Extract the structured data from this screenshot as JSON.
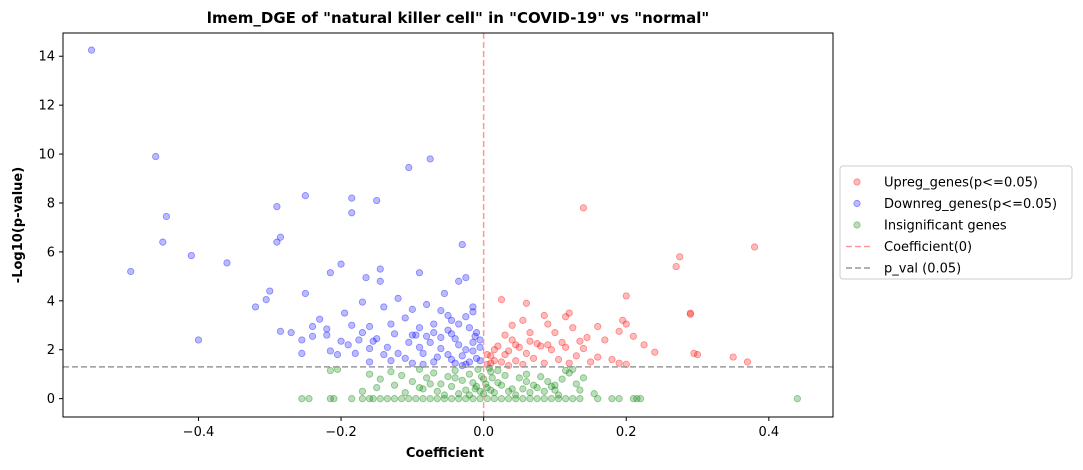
{
  "chart_data": {
    "type": "scatter",
    "title": "lmem_DGE of \"natural killer cell\" in \"COVID-19\" vs \"normal\"",
    "xlabel": "Coefficient",
    "ylabel": "-Log10(p-value)",
    "xlim": [
      -0.59,
      0.49
    ],
    "ylim": [
      -0.75,
      14.95
    ],
    "xticks": [
      -0.4,
      -0.2,
      0.0,
      0.2,
      0.4
    ],
    "xtick_labels": [
      "−0.4",
      "−0.2",
      "0.0",
      "0.2",
      "0.4"
    ],
    "yticks": [
      0,
      2,
      4,
      6,
      8,
      10,
      12,
      14
    ],
    "ytick_labels": [
      "0",
      "2",
      "4",
      "6",
      "8",
      "10",
      "12",
      "14"
    ],
    "grid": false,
    "legend_position": "outside-right",
    "reference_lines": [
      {
        "name": "Coefficient(0)",
        "orientation": "vertical",
        "value": 0.0,
        "color": "#ff9999",
        "style": "dashed"
      },
      {
        "name": "p_val (0.05)",
        "orientation": "horizontal",
        "value": 1.301,
        "color": "#999999",
        "style": "dashed"
      }
    ],
    "series": [
      {
        "name": "Upreg_genes(p<=0.05)",
        "color": "#ff0000",
        "points": [
          [
            0.14,
            7.8
          ],
          [
            0.38,
            6.2
          ],
          [
            0.275,
            5.8
          ],
          [
            0.27,
            5.4
          ],
          [
            0.2,
            4.2
          ],
          [
            0.025,
            4.05
          ],
          [
            0.06,
            3.9
          ],
          [
            0.29,
            3.5
          ],
          [
            0.29,
            3.45
          ],
          [
            0.12,
            3.5
          ],
          [
            0.085,
            3.4
          ],
          [
            0.115,
            3.35
          ],
          [
            0.195,
            3.2
          ],
          [
            0.2,
            3.05
          ],
          [
            0.055,
            3.2
          ],
          [
            0.09,
            3.05
          ],
          [
            0.04,
            3.0
          ],
          [
            0.16,
            2.95
          ],
          [
            0.125,
            2.9
          ],
          [
            0.19,
            2.75
          ],
          [
            0.1,
            2.7
          ],
          [
            0.065,
            2.7
          ],
          [
            0.03,
            2.6
          ],
          [
            0.145,
            2.5
          ],
          [
            0.21,
            2.55
          ],
          [
            0.17,
            2.4
          ],
          [
            0.135,
            2.35
          ],
          [
            0.11,
            2.3
          ],
          [
            0.075,
            2.25
          ],
          [
            0.045,
            2.2
          ],
          [
            0.02,
            2.15
          ],
          [
            0.225,
            2.2
          ],
          [
            0.08,
            2.15
          ],
          [
            0.05,
            2.1
          ],
          [
            0.035,
            1.95
          ],
          [
            0.015,
            2.0
          ],
          [
            0.095,
            2.0
          ],
          [
            0.06,
            1.85
          ],
          [
            0.03,
            1.8
          ],
          [
            0.01,
            1.75
          ],
          [
            0.16,
            1.7
          ],
          [
            0.18,
            1.6
          ],
          [
            0.13,
            1.75
          ],
          [
            0.105,
            1.6
          ],
          [
            0.07,
            1.65
          ],
          [
            0.045,
            1.55
          ],
          [
            0.025,
            1.5
          ],
          [
            0.01,
            1.45
          ],
          [
            0.19,
            1.45
          ],
          [
            0.24,
            1.9
          ],
          [
            0.3,
            1.8
          ],
          [
            0.295,
            1.85
          ],
          [
            0.35,
            1.7
          ],
          [
            0.37,
            1.5
          ],
          [
            0.2,
            1.4
          ],
          [
            0.15,
            1.5
          ],
          [
            0.12,
            1.45
          ],
          [
            0.085,
            1.45
          ],
          [
            0.055,
            1.4
          ],
          [
            0.005,
            1.4
          ],
          [
            0.015,
            1.55
          ],
          [
            0.005,
            1.8
          ],
          [
            0.04,
            2.4
          ],
          [
            0.065,
            2.35
          ],
          [
            0.09,
            2.2
          ],
          [
            0.115,
            2.1
          ],
          [
            0.14,
            2.05
          ],
          [
            0.035,
            1.35
          ]
        ]
      },
      {
        "name": "Downreg_genes(p<=0.05)",
        "color": "#0000ff",
        "points": [
          [
            -0.55,
            14.25
          ],
          [
            -0.46,
            9.9
          ],
          [
            -0.075,
            9.8
          ],
          [
            -0.105,
            9.45
          ],
          [
            -0.25,
            8.3
          ],
          [
            -0.185,
            8.2
          ],
          [
            -0.15,
            8.1
          ],
          [
            -0.29,
            7.85
          ],
          [
            -0.185,
            7.6
          ],
          [
            -0.445,
            7.45
          ],
          [
            -0.285,
            6.6
          ],
          [
            -0.29,
            6.4
          ],
          [
            -0.45,
            6.4
          ],
          [
            -0.03,
            6.3
          ],
          [
            -0.41,
            5.85
          ],
          [
            -0.495,
            5.2
          ],
          [
            -0.36,
            5.55
          ],
          [
            -0.2,
            5.5
          ],
          [
            -0.215,
            5.15
          ],
          [
            -0.145,
            5.3
          ],
          [
            -0.09,
            5.15
          ],
          [
            -0.025,
            4.95
          ],
          [
            -0.035,
            4.8
          ],
          [
            -0.165,
            4.95
          ],
          [
            -0.145,
            4.8
          ],
          [
            -0.3,
            4.4
          ],
          [
            -0.25,
            4.3
          ],
          [
            -0.305,
            4.05
          ],
          [
            -0.32,
            3.75
          ],
          [
            -0.17,
            3.95
          ],
          [
            -0.055,
            4.3
          ],
          [
            -0.12,
            4.1
          ],
          [
            -0.08,
            3.85
          ],
          [
            -0.14,
            3.75
          ],
          [
            -0.015,
            3.75
          ],
          [
            -0.195,
            3.5
          ],
          [
            -0.05,
            3.4
          ],
          [
            -0.11,
            3.3
          ],
          [
            -0.045,
            3.2
          ],
          [
            -0.23,
            3.25
          ],
          [
            -0.24,
            2.95
          ],
          [
            -0.22,
            2.85
          ],
          [
            -0.185,
            3.0
          ],
          [
            -0.16,
            2.95
          ],
          [
            -0.13,
            3.05
          ],
          [
            -0.09,
            2.9
          ],
          [
            -0.07,
            3.05
          ],
          [
            -0.035,
            3.05
          ],
          [
            -0.02,
            2.9
          ],
          [
            -0.01,
            2.7
          ],
          [
            -0.05,
            2.8
          ],
          [
            -0.095,
            2.6
          ],
          [
            -0.125,
            2.65
          ],
          [
            -0.17,
            2.7
          ],
          [
            -0.22,
            2.6
          ],
          [
            -0.24,
            2.55
          ],
          [
            -0.27,
            2.7
          ],
          [
            -0.285,
            2.75
          ],
          [
            -0.4,
            2.4
          ],
          [
            -0.255,
            2.4
          ],
          [
            -0.2,
            2.35
          ],
          [
            -0.155,
            2.35
          ],
          [
            -0.105,
            2.3
          ],
          [
            -0.075,
            2.3
          ],
          [
            -0.04,
            2.45
          ],
          [
            -0.015,
            2.3
          ],
          [
            -0.005,
            2.1
          ],
          [
            -0.025,
            2.0
          ],
          [
            -0.06,
            2.05
          ],
          [
            -0.09,
            2.1
          ],
          [
            -0.135,
            2.1
          ],
          [
            -0.16,
            2.05
          ],
          [
            -0.19,
            2.2
          ],
          [
            -0.215,
            1.95
          ],
          [
            -0.255,
            1.85
          ],
          [
            -0.205,
            1.8
          ],
          [
            -0.18,
            1.85
          ],
          [
            -0.14,
            1.8
          ],
          [
            -0.12,
            1.85
          ],
          [
            -0.085,
            1.85
          ],
          [
            -0.05,
            1.8
          ],
          [
            -0.03,
            1.75
          ],
          [
            -0.01,
            1.65
          ],
          [
            -0.005,
            1.55
          ],
          [
            -0.02,
            1.5
          ],
          [
            -0.04,
            1.45
          ],
          [
            -0.07,
            1.5
          ],
          [
            -0.1,
            1.45
          ],
          [
            -0.13,
            1.55
          ],
          [
            -0.16,
            1.5
          ],
          [
            -0.025,
            1.4
          ],
          [
            -0.045,
            1.6
          ],
          [
            -0.065,
            1.7
          ],
          [
            -0.11,
            1.65
          ],
          [
            -0.015,
            1.95
          ],
          [
            -0.035,
            2.2
          ],
          [
            -0.06,
            2.5
          ],
          [
            -0.08,
            2.55
          ],
          [
            -0.1,
            2.6
          ],
          [
            -0.15,
            2.45
          ],
          [
            -0.175,
            2.4
          ],
          [
            -0.03,
            1.35
          ],
          [
            -0.085,
            1.4
          ],
          [
            -0.005,
            2.4
          ],
          [
            -0.012,
            2.55
          ],
          [
            -0.045,
            2.65
          ],
          [
            -0.07,
            2.7
          ],
          [
            -0.025,
            3.35
          ],
          [
            -0.015,
            3.55
          ],
          [
            -0.06,
            3.6
          ],
          [
            -0.1,
            3.65
          ]
        ]
      },
      {
        "name": "Insignificant genes",
        "color": "#008000",
        "points": [
          [
            0.44,
            0.0
          ],
          [
            -0.255,
            0.0
          ],
          [
            -0.245,
            0.0
          ],
          [
            -0.215,
            0.0
          ],
          [
            -0.21,
            0.0
          ],
          [
            -0.185,
            0.0
          ],
          [
            -0.17,
            0.0
          ],
          [
            -0.16,
            0.0
          ],
          [
            -0.155,
            0.0
          ],
          [
            -0.145,
            0.0
          ],
          [
            -0.135,
            0.0
          ],
          [
            -0.125,
            0.0
          ],
          [
            -0.115,
            0.0
          ],
          [
            -0.105,
            0.0
          ],
          [
            -0.095,
            0.0
          ],
          [
            -0.085,
            0.0
          ],
          [
            -0.075,
            0.0
          ],
          [
            -0.065,
            0.0
          ],
          [
            -0.055,
            0.0
          ],
          [
            -0.045,
            0.0
          ],
          [
            -0.035,
            0.0
          ],
          [
            -0.025,
            0.0
          ],
          [
            -0.015,
            0.0
          ],
          [
            -0.005,
            0.0
          ],
          [
            0.005,
            0.0
          ],
          [
            0.015,
            0.0
          ],
          [
            0.025,
            0.0
          ],
          [
            0.035,
            0.0
          ],
          [
            0.045,
            0.0
          ],
          [
            0.055,
            0.0
          ],
          [
            0.065,
            0.0
          ],
          [
            0.075,
            0.0
          ],
          [
            0.085,
            0.0
          ],
          [
            0.095,
            0.0
          ],
          [
            0.105,
            0.0
          ],
          [
            0.115,
            0.0
          ],
          [
            0.125,
            0.0
          ],
          [
            0.135,
            0.0
          ],
          [
            0.16,
            0.0
          ],
          [
            0.18,
            0.0
          ],
          [
            0.19,
            0.0
          ],
          [
            0.21,
            0.0
          ],
          [
            0.215,
            0.0
          ],
          [
            0.22,
            0.0
          ],
          [
            -0.215,
            1.15
          ],
          [
            -0.205,
            1.2
          ],
          [
            -0.16,
            1.0
          ],
          [
            -0.145,
            0.8
          ],
          [
            -0.13,
            1.1
          ],
          [
            -0.115,
            0.95
          ],
          [
            -0.1,
            0.7
          ],
          [
            -0.09,
            1.2
          ],
          [
            -0.08,
            0.85
          ],
          [
            -0.07,
            1.05
          ],
          [
            -0.06,
            0.6
          ],
          [
            -0.05,
            0.9
          ],
          [
            -0.04,
            1.15
          ],
          [
            -0.03,
            0.75
          ],
          [
            -0.02,
            1.0
          ],
          [
            -0.01,
            0.5
          ],
          [
            0.0,
            0.8
          ],
          [
            0.01,
            1.1
          ],
          [
            0.02,
            0.65
          ],
          [
            0.03,
            0.95
          ],
          [
            0.04,
            0.4
          ],
          [
            0.05,
            0.85
          ],
          [
            0.06,
            1.0
          ],
          [
            0.07,
            0.55
          ],
          [
            0.08,
            0.9
          ],
          [
            0.09,
            0.7
          ],
          [
            0.1,
            0.35
          ],
          [
            0.11,
            0.8
          ],
          [
            0.12,
            1.05
          ],
          [
            0.13,
            0.6
          ],
          [
            0.14,
            0.85
          ],
          [
            0.125,
            1.2
          ],
          [
            0.115,
            1.15
          ],
          [
            -0.17,
            0.3
          ],
          [
            -0.15,
            0.45
          ],
          [
            -0.125,
            0.55
          ],
          [
            -0.11,
            0.25
          ],
          [
            -0.085,
            0.4
          ],
          [
            -0.065,
            0.3
          ],
          [
            -0.045,
            0.5
          ],
          [
            -0.025,
            0.35
          ],
          [
            -0.015,
            0.65
          ],
          [
            -0.005,
            0.3
          ],
          [
            0.005,
            0.45
          ],
          [
            0.015,
            0.25
          ],
          [
            0.025,
            0.55
          ],
          [
            0.035,
            0.3
          ],
          [
            0.055,
            0.4
          ],
          [
            0.065,
            0.25
          ],
          [
            0.075,
            0.45
          ],
          [
            0.085,
            0.3
          ],
          [
            0.095,
            0.5
          ],
          [
            0.105,
            0.15
          ],
          [
            0.135,
            0.35
          ],
          [
            0.155,
            0.2
          ],
          [
            -0.02,
            0.15
          ],
          [
            0.0,
            0.2
          ],
          [
            0.01,
            0.35
          ],
          [
            -0.035,
            0.2
          ],
          [
            0.045,
            0.15
          ],
          [
            -0.055,
            0.15
          ],
          [
            -0.008,
            1.2
          ],
          [
            0.008,
            1.25
          ],
          [
            -0.003,
            0.9
          ],
          [
            0.003,
            0.6
          ],
          [
            -0.012,
            0.4
          ],
          [
            0.012,
            0.85
          ],
          [
            -0.075,
            0.6
          ],
          [
            0.06,
            0.7
          ],
          [
            -0.09,
            0.45
          ],
          [
            0.1,
            0.55
          ],
          [
            0.02,
            1.15
          ],
          [
            -0.04,
            0.85
          ]
        ]
      }
    ]
  }
}
